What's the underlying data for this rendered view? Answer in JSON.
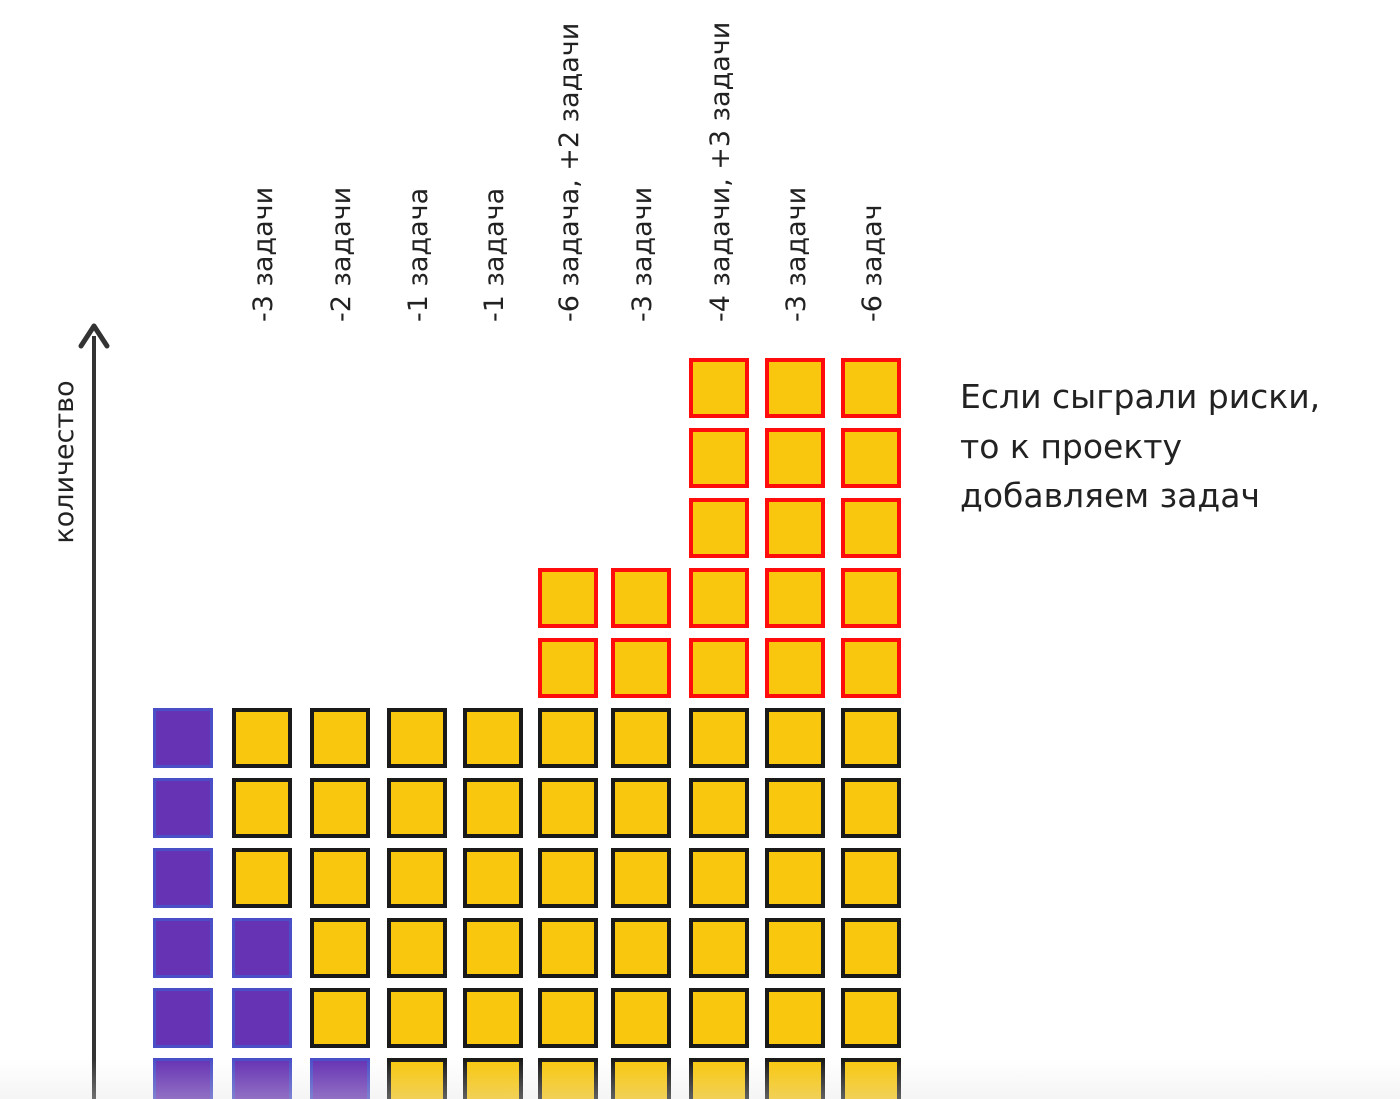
{
  "diagram": {
    "axis_label": "количество",
    "note_lines": [
      "Если сыграли риски,",
      "то к проекту",
      "добавляем задач"
    ],
    "columns": [
      {
        "label": "",
        "total": 6,
        "done": 6,
        "risk": 0
      },
      {
        "label": "-3 задачи",
        "total": 6,
        "done": 3,
        "risk": 0
      },
      {
        "label": "-2 задачи",
        "total": 6,
        "done": 1,
        "risk": 0
      },
      {
        "label": "-1 задача",
        "total": 6,
        "done": 0,
        "risk": 0
      },
      {
        "label": "-1 задача",
        "total": 6,
        "done": 0,
        "risk": 0
      },
      {
        "label": "-6 задача, +2 задачи",
        "total": 8,
        "done": 0,
        "risk": 2
      },
      {
        "label": "-3 задачи",
        "total": 8,
        "done": 0,
        "risk": 2
      },
      {
        "label": "-4 задачи, +3 задачи",
        "total": 11,
        "done": 0,
        "risk": 5
      },
      {
        "label": "-3 задачи",
        "total": 11,
        "done": 0,
        "risk": 5
      },
      {
        "label": "-6 задач",
        "total": 11,
        "done": 0,
        "risk": 5
      }
    ]
  },
  "colors": {
    "done_fill": "#6633b4",
    "done_border": "#4a4fc8",
    "task_fill": "#f9c80e",
    "task_border": "#1a1a1a",
    "risk_border": "#ff0d0d",
    "axis": "#333333",
    "text": "#222222"
  }
}
